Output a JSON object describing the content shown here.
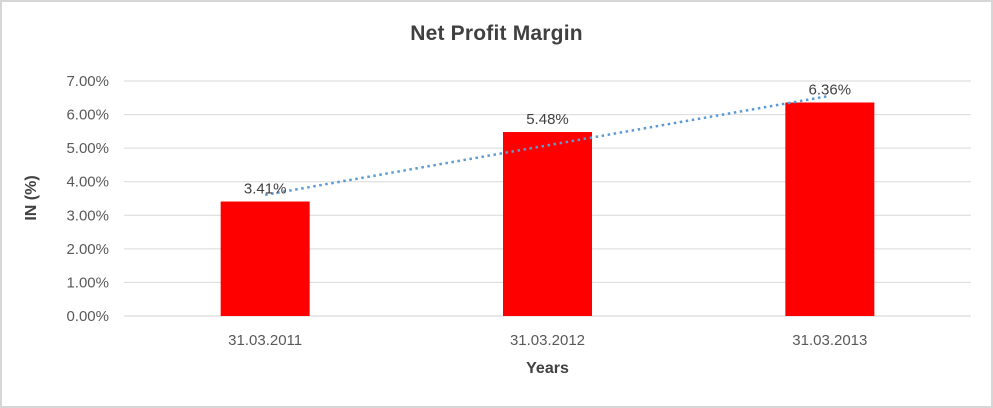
{
  "chart_data": {
    "type": "bar",
    "title": "Net Profit Margin",
    "xlabel": "Years",
    "ylabel": "IN (%)",
    "categories": [
      "31.03.2011",
      "31.03.2012",
      "31.03.2013"
    ],
    "series": [
      {
        "name": "Net Profit Margin",
        "values": [
          3.41,
          5.48,
          6.36
        ]
      }
    ],
    "data_labels": [
      "3.41%",
      "5.48%",
      "6.36%"
    ],
    "y_ticks": [
      "0.00%",
      "1.00%",
      "2.00%",
      "3.00%",
      "4.00%",
      "5.00%",
      "6.00%",
      "7.00%"
    ],
    "ylim": [
      0,
      7
    ],
    "y_step": 1,
    "grid": true,
    "legend": "none",
    "bar_color": "#ff0000",
    "trendline": {
      "type": "linear",
      "style": "dotted",
      "color": "#5b9bd5"
    },
    "colors": {
      "title_text": "#404040",
      "axis_title_text": "#404040",
      "tick_text": "#595959",
      "data_label_text": "#404040",
      "gridline": "#d9d9d9",
      "axis_line": "#d2d2d2",
      "frame_border": "#d6d6d6",
      "background": "#ffffff"
    }
  }
}
